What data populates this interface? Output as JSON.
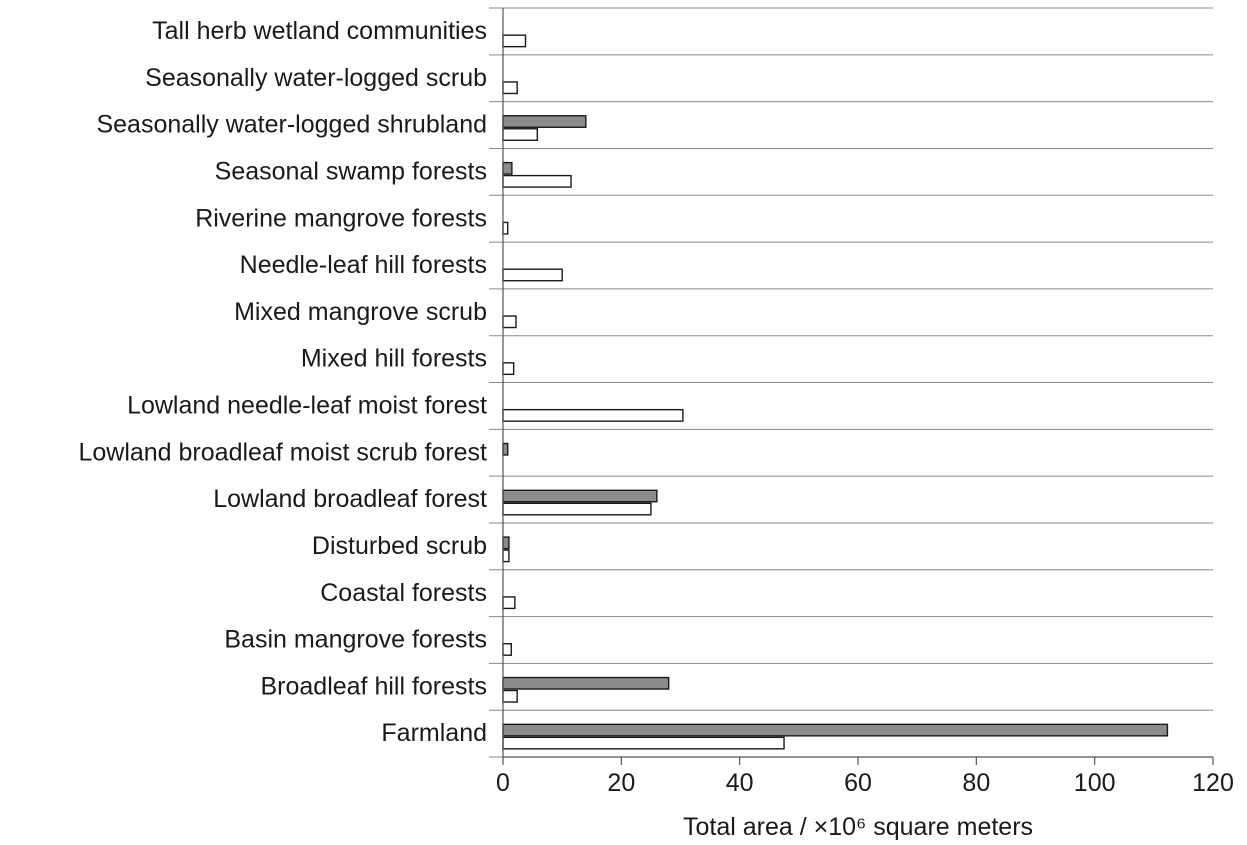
{
  "chart_data": {
    "type": "bar",
    "orientation": "horizontal",
    "categories": [
      "Tall herb wetland communities",
      "Seasonally water-logged scrub",
      "Seasonally water-logged shrubland",
      "Seasonal swamp forests",
      "Riverine mangrove forests",
      "Needle-leaf hill forests",
      "Mixed mangrove scrub",
      "Mixed hill forests",
      "Lowland needle-leaf moist forest",
      "Lowland broadleaf moist scrub forest",
      "Lowland broadleaf forest",
      "Disturbed scrub",
      "Coastal forests",
      "Basin mangrove forests",
      "Broadleaf hill forests",
      "Farmland"
    ],
    "series": [
      {
        "color": "#8c8c8c",
        "values": [
          0,
          0,
          14,
          1.5,
          0,
          0,
          0,
          0,
          0,
          0.8,
          26,
          1,
          0,
          0,
          28,
          112.3
        ]
      },
      {
        "color": "#ffffff",
        "values": [
          3.8,
          2.4,
          5.8,
          11.5,
          0.8,
          10,
          2.2,
          1.8,
          30.4,
          0,
          25,
          1,
          2,
          1.4,
          2.4,
          47.5
        ]
      }
    ],
    "xlabel": "Total area / ×10⁶ square meters",
    "xlim": [
      0,
      120
    ],
    "xticks": [
      0,
      20,
      40,
      60,
      80,
      100,
      120
    ],
    "grid": "horizontal separators between categories"
  }
}
